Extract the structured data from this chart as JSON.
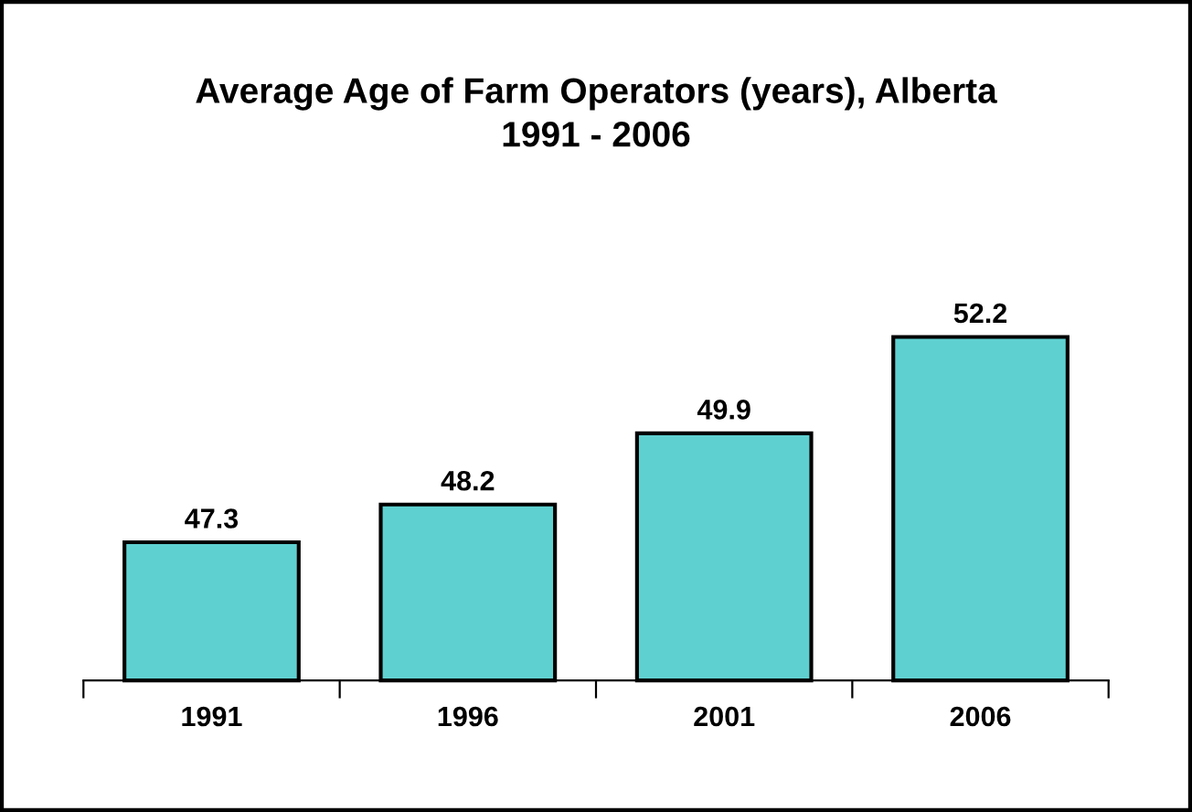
{
  "chart_data": {
    "type": "bar",
    "title": "Average Age of Farm Operators (years), Alberta\n1991 - 2006",
    "categories": [
      "1991",
      "1996",
      "2001",
      "2006"
    ],
    "values": [
      47.3,
      48.2,
      49.9,
      52.2
    ],
    "color": "#5fd0d0",
    "ylim": [
      44,
      52.2
    ],
    "data_labels": true,
    "tick_labels": "x",
    "grid": false,
    "legend": false
  }
}
